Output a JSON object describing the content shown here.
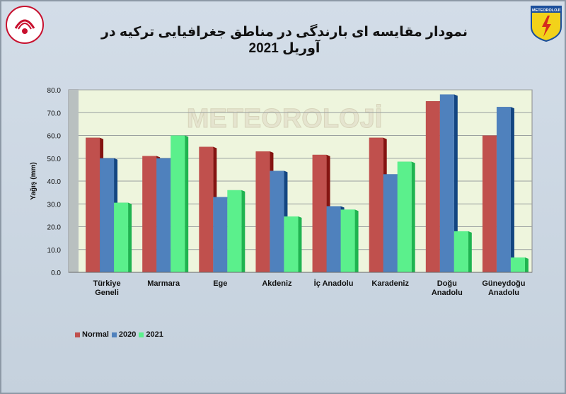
{
  "colors": {
    "normal": "#c0504d",
    "y2020": "#4f81bd",
    "y2021": "#5bf08c",
    "plot_bg": "#eef5dd",
    "grid": "#9aa0a0"
  },
  "logos": {
    "left": "ministry-logo",
    "right": "METEOROLOJİ"
  },
  "watermark": "METEOROLOJİ",
  "chart_data": {
    "type": "bar",
    "title": "نمودار مقایسه ای بارندگی در مناطق جغرافیایی ترکیه در آوریل 2021",
    "xlabel": "",
    "ylabel": "Yağış (mm)",
    "ylim": [
      0,
      80
    ],
    "yticks": [
      "0.0",
      "10.0",
      "20.0",
      "30.0",
      "40.0",
      "50.0",
      "60.0",
      "70.0",
      "80.0"
    ],
    "grid": true,
    "legend_position": "bottom-left",
    "categories": [
      [
        "Türkiye",
        "Geneli"
      ],
      [
        "Marmara"
      ],
      [
        "Ege"
      ],
      [
        "Akdeniz"
      ],
      [
        "İç Anadolu"
      ],
      [
        "Karadeniz"
      ],
      [
        "Doğu",
        "Anadolu"
      ],
      [
        "Güneydoğu",
        "Anadolu"
      ]
    ],
    "series": [
      {
        "name": "Normal",
        "values": [
          59,
          51,
          55,
          53,
          51.5,
          59,
          75,
          60
        ]
      },
      {
        "name": "2020",
        "values": [
          50,
          50,
          33,
          44.5,
          29,
          43,
          78,
          72.5
        ]
      },
      {
        "name": "2021",
        "values": [
          30.5,
          60,
          36,
          24.5,
          27.5,
          48.5,
          18,
          6.5
        ]
      }
    ]
  }
}
